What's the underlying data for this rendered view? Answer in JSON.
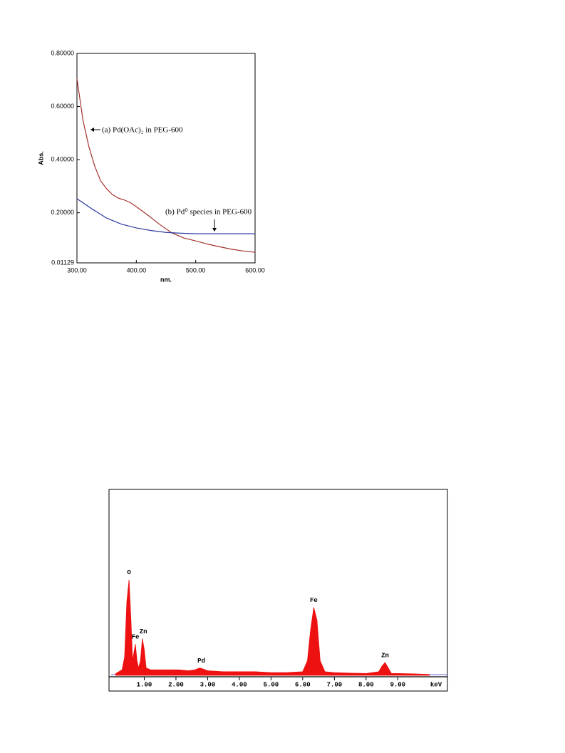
{
  "chart_data": [
    {
      "type": "line",
      "xlabel": "nm.",
      "ylabel": "Abs.",
      "xlim": [
        300,
        600
      ],
      "ylim": [
        0.01129,
        0.8
      ],
      "xticks": [
        {
          "value": 300,
          "label": "300.00"
        },
        {
          "value": 400,
          "label": "400.00"
        },
        {
          "value": 500,
          "label": "500.00"
        },
        {
          "value": 600,
          "label": "600.00"
        }
      ],
      "yticks": [
        0.01129,
        {
          "value": 0.2,
          "label": "0.20000"
        },
        {
          "value": 0.4,
          "label": "0.40000"
        },
        {
          "value": 0.6,
          "label": "0.60000"
        },
        {
          "value": 0.8,
          "label": "0.80000"
        }
      ],
      "series": [
        {
          "name": "(a) Pd(OAc)₂ in PEG-600",
          "color": "#a3322c",
          "x": [
            300,
            310,
            320,
            330,
            340,
            350,
            360,
            370,
            380,
            390,
            400,
            420,
            440,
            460,
            480,
            500,
            520,
            540,
            560,
            580,
            600
          ],
          "values": [
            0.706,
            0.55,
            0.45,
            0.375,
            0.32,
            0.29,
            0.268,
            0.255,
            0.248,
            0.238,
            0.223,
            0.19,
            0.155,
            0.124,
            0.105,
            0.094,
            0.082,
            0.072,
            0.063,
            0.056,
            0.051
          ]
        },
        {
          "name": "(b) Pd⁰ species in PEG-600",
          "color": "#2b3aa0",
          "x": [
            300,
            325,
            350,
            375,
            400,
            425,
            450,
            475,
            500,
            550,
            600
          ],
          "values": [
            0.253,
            0.215,
            0.18,
            0.157,
            0.143,
            0.133,
            0.126,
            0.123,
            0.121,
            0.121,
            0.121
          ]
        }
      ]
    },
    {
      "type": "area",
      "xlabel": "keV",
      "xlim": [
        0,
        10.5
      ],
      "ylim": [
        0,
        100
      ],
      "xticks": [
        {
          "value": 1,
          "label": "1.00"
        },
        {
          "value": 2,
          "label": "2.00"
        },
        {
          "value": 3,
          "label": "3.00"
        },
        {
          "value": 4,
          "label": "4.00"
        },
        {
          "value": 5,
          "label": "5.00"
        },
        {
          "value": 6,
          "label": "6.00"
        },
        {
          "value": 7,
          "label": "7.00"
        },
        {
          "value": 8,
          "label": "8.00"
        },
        {
          "value": 9,
          "label": "9.00"
        }
      ],
      "series": [
        {
          "color": "#ee1111",
          "x": [
            0.1,
            0.2,
            0.3,
            0.38,
            0.45,
            0.52,
            0.58,
            0.63,
            0.67,
            0.72,
            0.77,
            0.82,
            0.88,
            0.94,
            1.0,
            1.06,
            1.2,
            1.5,
            1.8,
            2.1,
            2.4,
            2.6,
            2.75,
            2.85,
            3.0,
            3.5,
            4.0,
            4.5,
            5.0,
            5.5,
            6.0,
            6.15,
            6.25,
            6.35,
            6.45,
            6.55,
            6.7,
            7.0,
            7.5,
            8.0,
            8.4,
            8.5,
            8.6,
            8.7,
            8.8,
            9.0,
            9.5,
            10.0
          ],
          "values": [
            1,
            2,
            3,
            10,
            40,
            52,
            30,
            8,
            12,
            17,
            8,
            4,
            8,
            20,
            14,
            4,
            3,
            3,
            3,
            3,
            2.5,
            3,
            4,
            3.5,
            2.5,
            2,
            2,
            2,
            1.5,
            1.5,
            2,
            8,
            25,
            37,
            30,
            8,
            2,
            1.5,
            1.2,
            1,
            2,
            5,
            7,
            4,
            1,
            1,
            0.8,
            0.5
          ]
        }
      ],
      "annotations": [
        {
          "text": "O",
          "x": 0.52
        },
        {
          "text": "Fe",
          "x": 0.72
        },
        {
          "text": "Zn",
          "x": 0.97
        },
        {
          "text": "Pd",
          "x": 2.8
        },
        {
          "text": "Fe",
          "x": 6.35
        },
        {
          "text": "Zn",
          "x": 8.6
        }
      ]
    }
  ]
}
